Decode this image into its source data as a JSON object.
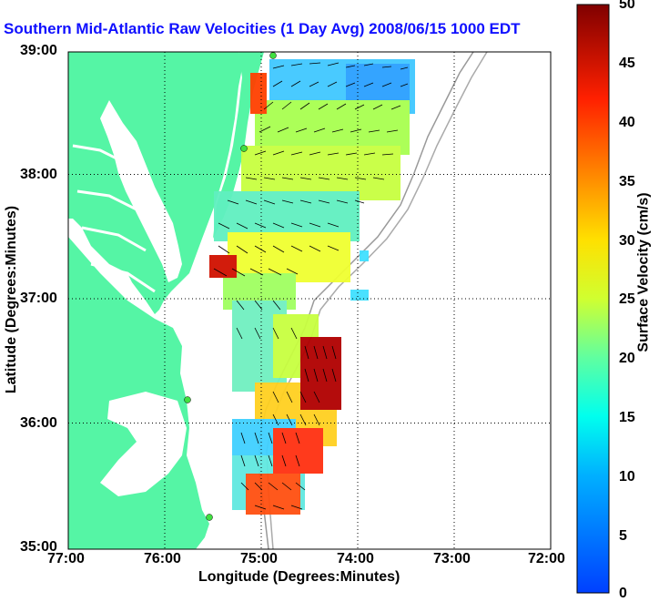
{
  "title": "Southern Mid-Atlantic Raw Velocities (1 Day Avg) 2008/06/15 1000 EDT",
  "map": {
    "xlabel": "Longitude (Degrees:Minutes)",
    "ylabel": "Latitude (Degrees:Minutes)",
    "x_ticks": [
      "77:00",
      "76:00",
      "75:00",
      "74:00",
      "73:00",
      "72:00"
    ],
    "y_ticks": [
      "39:00",
      "38:00",
      "37:00",
      "36:00",
      "35:00"
    ],
    "x_range": [
      -77,
      -72
    ],
    "y_range": [
      35,
      39
    ],
    "land_color": "#55f5a5",
    "grid": "dotted"
  },
  "colorbar": {
    "label": "Surface Velocity (cm/s)",
    "ticks": [
      "50",
      "45",
      "40",
      "35",
      "30",
      "25",
      "20",
      "15",
      "10",
      "5",
      "0"
    ],
    "range": [
      0,
      50
    ],
    "colormap": "jet"
  }
}
